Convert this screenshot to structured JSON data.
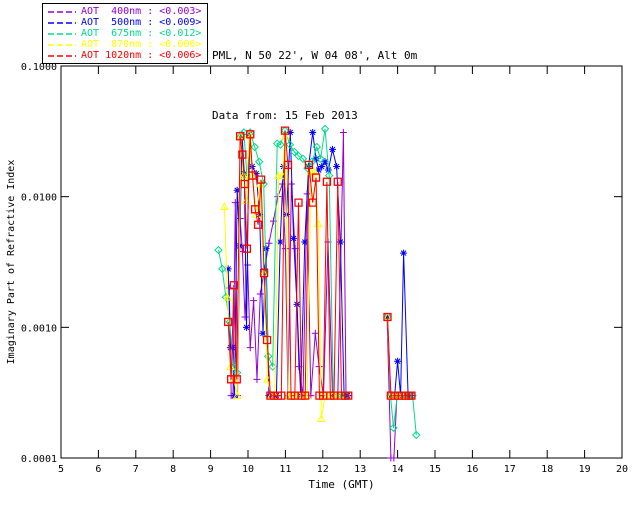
{
  "header": {
    "line1": "PML, N 50 22', W 04 08', Alt 0m",
    "line2": "Data from: 15 Feb 2013"
  },
  "legend": {
    "items": [
      {
        "label": "AOT  400nm",
        "sep": " : ",
        "value": "<0.003>",
        "color": "#9400D3"
      },
      {
        "label": "AOT  500nm",
        "sep": " : ",
        "value": "<0.009>",
        "color": "#0000FF"
      },
      {
        "label": "AOT  675nm",
        "sep": " : ",
        "value": "<0.012>",
        "color": "#00DD88"
      },
      {
        "label": "AOT  870nm",
        "sep": " : ",
        "value": "<0.006>",
        "color": "#FFFF00"
      },
      {
        "label": "AOT 1020nm",
        "sep": " : ",
        "value": "<0.006>",
        "color": "#FF0000"
      }
    ]
  },
  "chart_data": {
    "type": "line",
    "title": "",
    "xlabel": "Time (GMT)",
    "ylabel": "Imaginary Part of Refractive Index",
    "xlim": [
      5,
      20
    ],
    "ylim": [
      0.0001,
      0.1
    ],
    "yscale": "log",
    "grid": false,
    "legend_position": "top-left",
    "xticks": [
      5,
      6,
      7,
      8,
      9,
      10,
      11,
      12,
      13,
      14,
      15,
      16,
      17,
      18,
      19,
      20
    ],
    "yticks": [
      0.1,
      0.01,
      0.001,
      0.0001
    ],
    "ytick_labels": [
      "0.1000",
      "0.0100",
      "0.0010",
      "0.0001"
    ],
    "series": [
      {
        "name": "AOT 400nm",
        "color": "#9400D3",
        "marker": "plus",
        "points": [
          [
            9.5,
            0.002
          ],
          [
            9.55,
            0.0003
          ],
          [
            9.6,
            0.0003
          ],
          [
            9.66,
            0.009
          ],
          [
            9.72,
            0.0003
          ],
          [
            9.79,
            0.0068
          ],
          [
            9.85,
            0.0038
          ],
          [
            9.92,
            0.0012
          ],
          [
            9.99,
            0.003
          ],
          [
            10.06,
            0.0007
          ],
          [
            10.15,
            0.0016
          ],
          [
            10.24,
            0.0004
          ],
          [
            10.33,
            0.0018
          ],
          [
            10.44,
            0.0028
          ],
          [
            10.56,
            0.0044
          ],
          [
            10.68,
            0.0065
          ],
          [
            10.8,
            0.01
          ],
          [
            10.92,
            0.0125
          ],
          [
            11.0,
            0.004
          ],
          [
            11.07,
            0.0003
          ],
          [
            11.16,
            0.0125
          ],
          [
            11.26,
            0.004
          ],
          [
            11.36,
            0.0005
          ],
          [
            11.47,
            0.0003
          ],
          [
            11.58,
            0.0105
          ],
          [
            11.68,
            0.0003
          ],
          [
            11.8,
            0.0009
          ],
          [
            11.9,
            0.0005
          ],
          [
            12.02,
            0.0003
          ],
          [
            12.14,
            0.0045
          ],
          [
            12.26,
            0.0003
          ],
          [
            12.4,
            0.0003
          ],
          [
            12.55,
            0.031
          ],
          [
            12.62,
            0.0003
          ],
          [
            12.68,
            0.0003
          ],
          [
            13.72,
            0.0012
          ],
          [
            13.82,
            0.0001
          ],
          [
            13.9,
            0.0001
          ],
          [
            13.98,
            0.0003
          ],
          [
            14.08,
            0.0003
          ],
          [
            14.18,
            0.0003
          ]
        ]
      },
      {
        "name": "AOT 500nm",
        "color": "#0000FF",
        "marker": "asterisk",
        "points": [
          [
            9.47,
            0.0028
          ],
          [
            9.53,
            0.0007
          ],
          [
            9.58,
            0.0007
          ],
          [
            9.64,
            0.0003
          ],
          [
            9.71,
            0.0112
          ],
          [
            9.78,
            0.0042
          ],
          [
            9.84,
            0.03
          ],
          [
            9.9,
            0.015
          ],
          [
            9.96,
            0.001
          ],
          [
            10.03,
            0.03
          ],
          [
            10.11,
            0.017
          ],
          [
            10.22,
            0.015
          ],
          [
            10.31,
            0.0073
          ],
          [
            10.4,
            0.0009
          ],
          [
            10.48,
            0.004
          ],
          [
            10.56,
            0.0003
          ],
          [
            10.66,
            0.0003
          ],
          [
            10.76,
            0.0003
          ],
          [
            10.86,
            0.0045
          ],
          [
            10.95,
            0.017
          ],
          [
            11.03,
            0.0073
          ],
          [
            11.13,
            0.031
          ],
          [
            11.22,
            0.0048
          ],
          [
            11.31,
            0.0015
          ],
          [
            11.41,
            0.0003
          ],
          [
            11.52,
            0.0045
          ],
          [
            11.62,
            0.017
          ],
          [
            11.73,
            0.031
          ],
          [
            11.82,
            0.0195
          ],
          [
            11.89,
            0.016
          ],
          [
            11.97,
            0.017
          ],
          [
            12.06,
            0.0185
          ],
          [
            12.15,
            0.016
          ],
          [
            12.26,
            0.023
          ],
          [
            12.37,
            0.017
          ],
          [
            12.47,
            0.0045
          ],
          [
            12.57,
            0.0003
          ],
          [
            12.66,
            0.0003
          ],
          [
            13.73,
            0.0012
          ],
          [
            13.82,
            0.0003
          ],
          [
            13.92,
            0.0003
          ],
          [
            14.0,
            0.00055
          ],
          [
            14.08,
            0.0003
          ],
          [
            14.16,
            0.0037
          ],
          [
            14.28,
            0.0003
          ],
          [
            14.37,
            0.0003
          ]
        ]
      },
      {
        "name": "AOT 675nm",
        "color": "#00DD88",
        "marker": "diamond",
        "points": [
          [
            9.21,
            0.0039
          ],
          [
            9.31,
            0.0028
          ],
          [
            9.41,
            0.0017
          ],
          [
            9.51,
            0.0011
          ],
          [
            9.61,
            0.0005
          ],
          [
            9.71,
            0.00045
          ],
          [
            9.81,
            0.029
          ],
          [
            9.89,
            0.031
          ],
          [
            9.97,
            0.0145
          ],
          [
            10.06,
            0.031
          ],
          [
            10.18,
            0.024
          ],
          [
            10.3,
            0.0185
          ],
          [
            10.42,
            0.0125
          ],
          [
            10.54,
            0.0006
          ],
          [
            10.66,
            0.0005
          ],
          [
            10.78,
            0.0255
          ],
          [
            10.87,
            0.025
          ],
          [
            10.99,
            0.032
          ],
          [
            11.12,
            0.025
          ],
          [
            11.24,
            0.022
          ],
          [
            11.35,
            0.0205
          ],
          [
            11.47,
            0.0195
          ],
          [
            11.59,
            0.0165
          ],
          [
            11.71,
            0.0185
          ],
          [
            11.84,
            0.024
          ],
          [
            11.94,
            0.0195
          ],
          [
            12.06,
            0.033
          ],
          [
            12.17,
            0.0145
          ],
          [
            12.28,
            0.0003
          ],
          [
            12.4,
            0.0003
          ],
          [
            12.52,
            0.0003
          ],
          [
            12.62,
            0.0003
          ],
          [
            13.73,
            0.0012
          ],
          [
            13.81,
            0.0003
          ],
          [
            13.89,
            0.00017
          ],
          [
            13.99,
            0.0003
          ],
          [
            14.09,
            0.0003
          ],
          [
            14.2,
            0.0003
          ],
          [
            14.3,
            0.0003
          ],
          [
            14.4,
            0.0003
          ],
          [
            14.5,
            0.00015
          ]
        ]
      },
      {
        "name": "AOT 870nm",
        "color": "#FFFF00",
        "marker": "triangle",
        "points": [
          [
            9.37,
            0.0084
          ],
          [
            9.45,
            0.0017
          ],
          [
            9.53,
            0.0005
          ],
          [
            9.62,
            0.0004
          ],
          [
            9.71,
            0.0003
          ],
          [
            9.81,
            0.029
          ],
          [
            9.88,
            0.0145
          ],
          [
            9.95,
            0.0093
          ],
          [
            10.03,
            0.03
          ],
          [
            10.12,
            0.0145
          ],
          [
            10.22,
            0.0073
          ],
          [
            10.32,
            0.0125
          ],
          [
            10.42,
            0.0026
          ],
          [
            10.52,
            0.0004
          ],
          [
            10.62,
            0.0003
          ],
          [
            10.72,
            0.0003
          ],
          [
            10.82,
            0.0145
          ],
          [
            10.92,
            0.0145
          ],
          [
            11.0,
            0.029
          ],
          [
            11.08,
            0.0003
          ],
          [
            11.18,
            0.0003
          ],
          [
            11.28,
            0.0003
          ],
          [
            11.38,
            0.0003
          ],
          [
            11.48,
            0.0003
          ],
          [
            11.58,
            0.0003
          ],
          [
            11.68,
            0.0155
          ],
          [
            11.78,
            0.0155
          ],
          [
            11.88,
            0.0062
          ],
          [
            11.96,
            0.0002
          ],
          [
            12.06,
            0.0003
          ],
          [
            12.16,
            0.0003
          ],
          [
            12.26,
            0.0003
          ],
          [
            12.36,
            0.0003
          ],
          [
            12.46,
            0.0003
          ],
          [
            13.73,
            0.0012
          ],
          [
            13.82,
            0.0003
          ],
          [
            13.92,
            0.0003
          ],
          [
            14.02,
            0.0003
          ],
          [
            14.12,
            0.0003
          ]
        ]
      },
      {
        "name": "AOT 1020nm",
        "color": "#FF0000",
        "marker": "square",
        "points": [
          [
            9.47,
            0.0011
          ],
          [
            9.55,
            0.0004
          ],
          [
            9.62,
            0.0021
          ],
          [
            9.7,
            0.0004
          ],
          [
            9.79,
            0.029
          ],
          [
            9.85,
            0.021
          ],
          [
            9.91,
            0.0125
          ],
          [
            9.97,
            0.004
          ],
          [
            10.06,
            0.03
          ],
          [
            10.12,
            0.0145
          ],
          [
            10.19,
            0.008
          ],
          [
            10.27,
            0.0061
          ],
          [
            10.35,
            0.0135
          ],
          [
            10.43,
            0.0026
          ],
          [
            10.51,
            0.0008
          ],
          [
            10.6,
            0.0003
          ],
          [
            10.7,
            0.0003
          ],
          [
            10.8,
            0.0003
          ],
          [
            10.89,
            0.0003
          ],
          [
            10.99,
            0.032
          ],
          [
            11.07,
            0.0175
          ],
          [
            11.15,
            0.0003
          ],
          [
            11.25,
            0.0003
          ],
          [
            11.35,
            0.009
          ],
          [
            11.43,
            0.0003
          ],
          [
            11.53,
            0.0003
          ],
          [
            11.63,
            0.0175
          ],
          [
            11.73,
            0.009
          ],
          [
            11.82,
            0.014
          ],
          [
            11.91,
            0.0003
          ],
          [
            12.01,
            0.0003
          ],
          [
            12.11,
            0.013
          ],
          [
            12.2,
            0.0003
          ],
          [
            12.3,
            0.0003
          ],
          [
            12.4,
            0.013
          ],
          [
            12.5,
            0.0003
          ],
          [
            12.6,
            0.0003
          ],
          [
            12.68,
            0.0003
          ],
          [
            13.73,
            0.0012
          ],
          [
            13.82,
            0.0003
          ],
          [
            13.92,
            0.0003
          ],
          [
            14.02,
            0.0003
          ],
          [
            14.12,
            0.0003
          ],
          [
            14.22,
            0.0003
          ],
          [
            14.3,
            0.0003
          ],
          [
            14.37,
            0.0003
          ]
        ]
      }
    ]
  }
}
